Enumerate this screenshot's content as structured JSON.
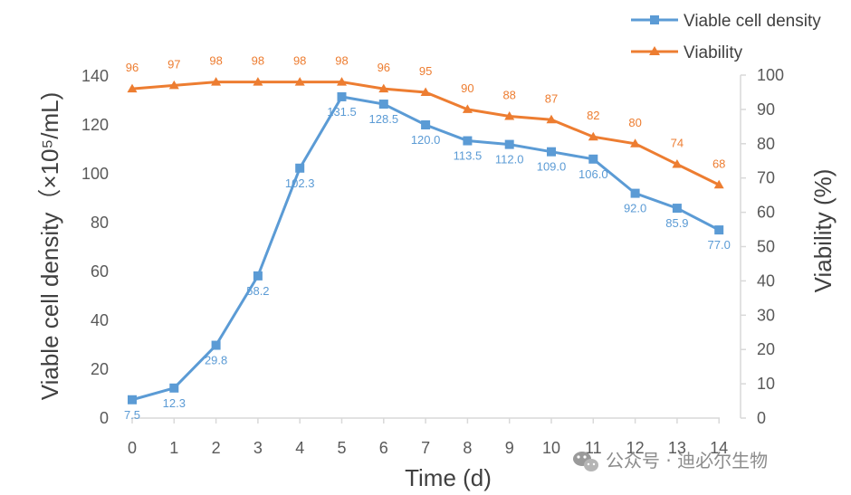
{
  "chart_data": {
    "type": "line",
    "x": [
      0,
      1,
      2,
      3,
      4,
      5,
      6,
      7,
      8,
      9,
      10,
      11,
      12,
      13,
      14
    ],
    "xlabel": "Time (d)",
    "ylabel_left": "Viable cell density（×10⁵/mL)",
    "ylabel_right": "Viability (%)",
    "ylim_left": [
      0,
      140
    ],
    "ylim_right": [
      0,
      100
    ],
    "xticks": [
      "0",
      "1",
      "2",
      "3",
      "4",
      "5",
      "6",
      "7",
      "8",
      "9",
      "10",
      "11",
      "12",
      "13",
      "14"
    ],
    "yticks_left": [
      "0",
      "20",
      "40",
      "60",
      "80",
      "100",
      "120",
      "140"
    ],
    "yticks_right": [
      "0",
      "10",
      "20",
      "30",
      "40",
      "50",
      "60",
      "70",
      "80",
      "90",
      "100"
    ],
    "grid": false,
    "legend_position": "top-right",
    "series": [
      {
        "name": "Viable cell density",
        "axis": "left",
        "marker": "square",
        "color": "#5B9BD5",
        "values": [
          7.5,
          12.3,
          29.8,
          58.2,
          102.3,
          131.5,
          128.5,
          120.0,
          113.5,
          112.0,
          109.0,
          106.0,
          92.0,
          85.9,
          77.0
        ],
        "labels": [
          "7.5",
          "12.3",
          "29.8",
          "58.2",
          "102.3",
          "131.5",
          "128.5",
          "120.0",
          "113.5",
          "112.0",
          "109.0",
          "106.0",
          "92.0",
          "85.9",
          "77.0"
        ]
      },
      {
        "name": "Viability",
        "axis": "right",
        "marker": "triangle",
        "color": "#ED7D31",
        "values": [
          96,
          97,
          98,
          98,
          98,
          98,
          96,
          95,
          90,
          88,
          87,
          82,
          80,
          74,
          68
        ],
        "labels": [
          "96",
          "97",
          "98",
          "98",
          "98",
          "98",
          "96",
          "95",
          "90",
          "88",
          "87",
          "82",
          "80",
          "74",
          "68"
        ]
      }
    ]
  },
  "watermark": {
    "icon": "wechat-icon",
    "text": "公众号 · 迪必尔生物"
  }
}
